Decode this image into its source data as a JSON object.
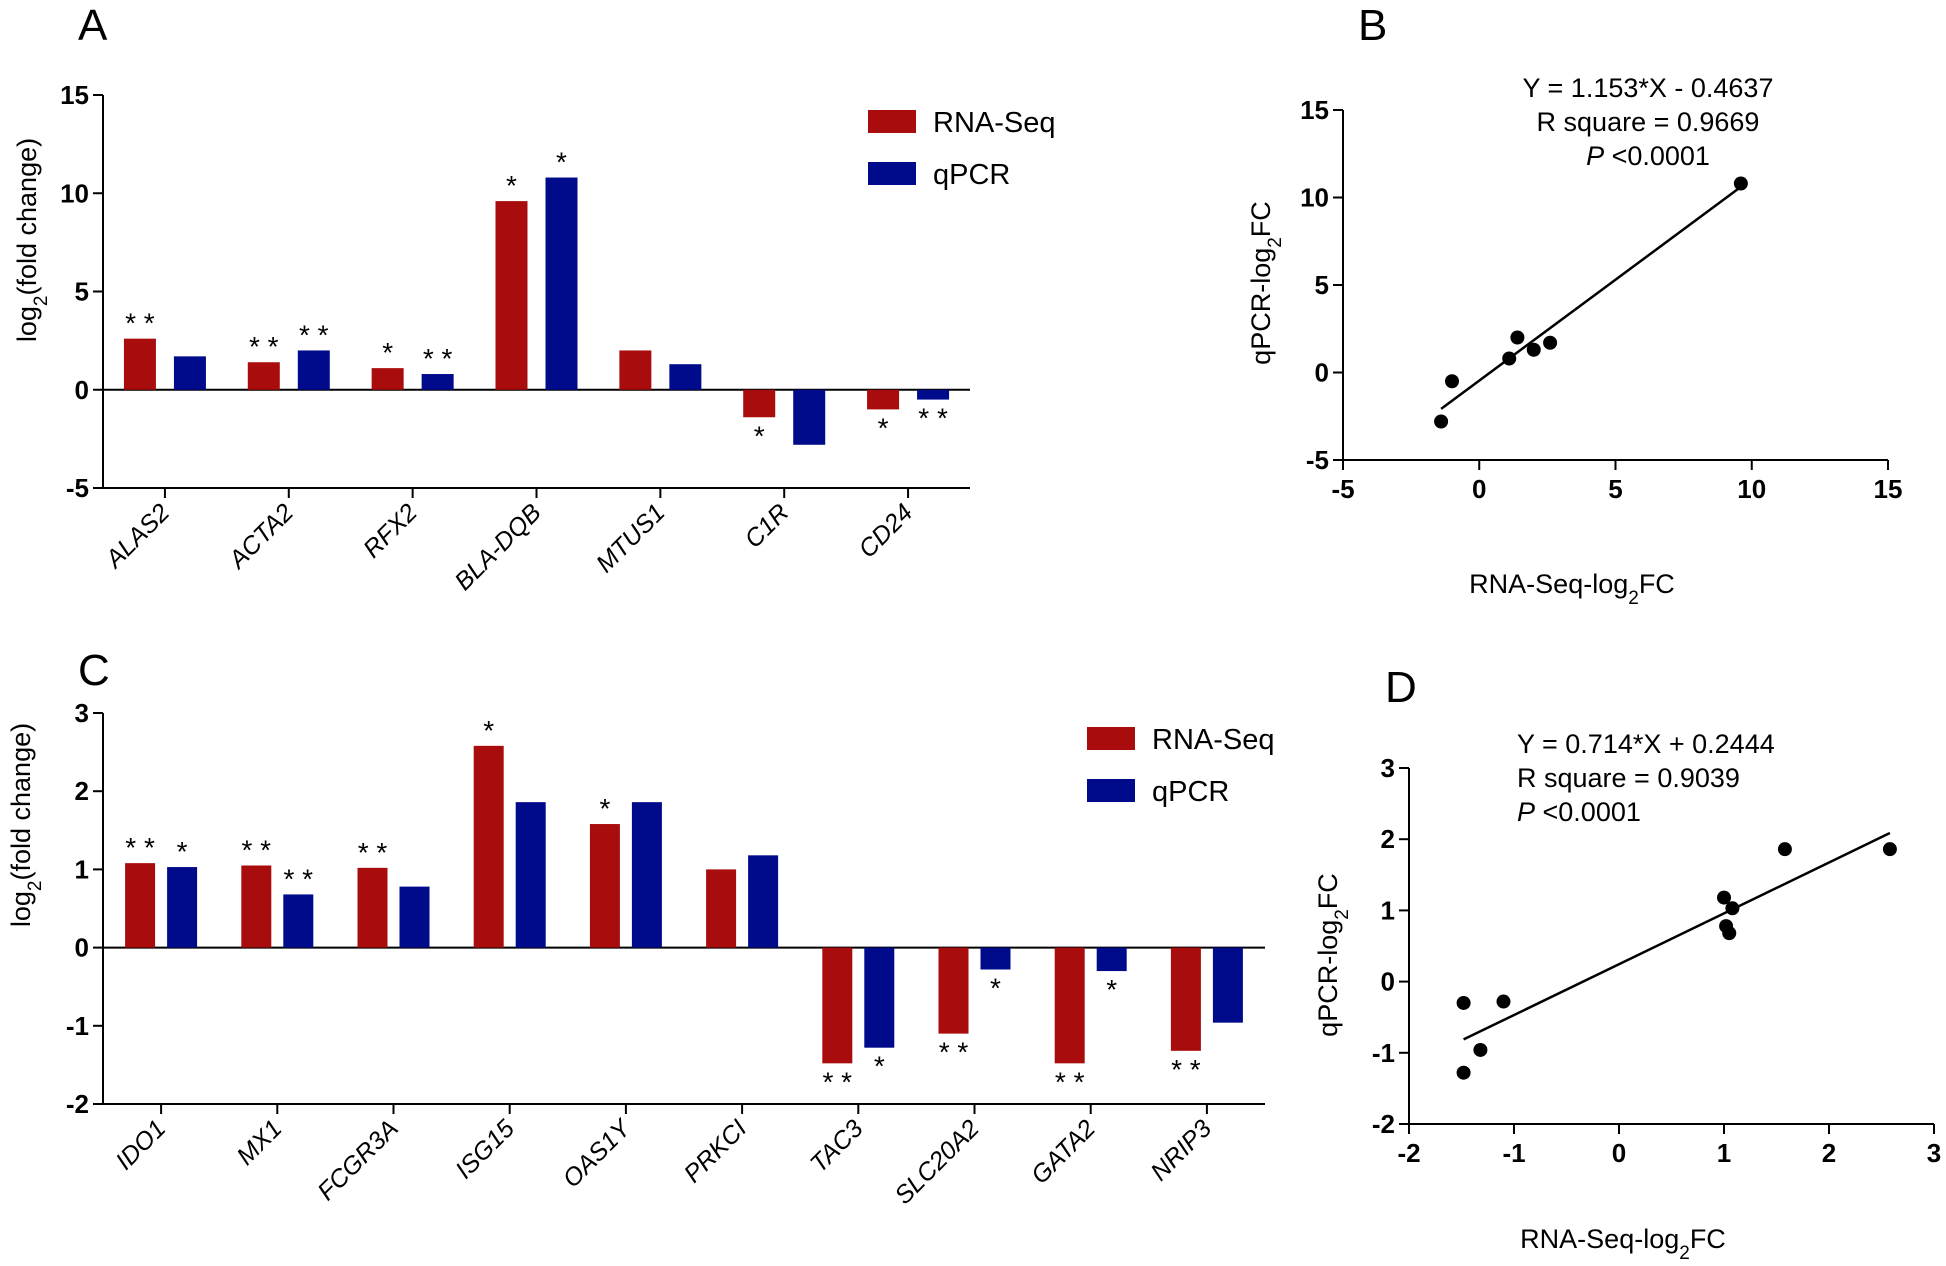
{
  "colors": {
    "rna": "#a80c0c",
    "qpcr": "#000b8c",
    "axis": "#000000"
  },
  "panels": {
    "A": {
      "letter": "A",
      "ylabel_prefix": "log",
      "ylabel_sub": "2",
      "ylabel_suffix": "(fold change)"
    },
    "B": {
      "letter": "B",
      "ylabel_prefix": "qPCR-log",
      "ylabel_sub": "2",
      "ylabel_suffix": "FC",
      "xlabel_prefix": "RNA-Seq-log",
      "xlabel_sub": "2",
      "xlabel_suffix": "FC"
    },
    "C": {
      "letter": "C",
      "ylabel_prefix": "log",
      "ylabel_sub": "2",
      "ylabel_suffix": "(fold change)"
    },
    "D": {
      "letter": "D",
      "ylabel_prefix": "qPCR-log",
      "ylabel_sub": "2",
      "ylabel_suffix": "FC",
      "xlabel_prefix": "RNA-Seq-log",
      "xlabel_sub": "2",
      "xlabel_suffix": "FC"
    }
  },
  "chart_data": [
    {
      "id": "A",
      "type": "bar",
      "categories": [
        "ALAS2",
        "ACTA2",
        "RFX2",
        "BLA-DQB",
        "MTUS1",
        "C1R",
        "CD24"
      ],
      "series": [
        {
          "name": "RNA-Seq",
          "values": [
            2.6,
            1.4,
            1.1,
            9.6,
            2.0,
            -1.4,
            -1.0
          ]
        },
        {
          "name": "qPCR",
          "values": [
            1.7,
            2.0,
            0.8,
            10.8,
            1.3,
            -2.8,
            -0.5
          ]
        }
      ],
      "significance": [
        [
          "**",
          ""
        ],
        [
          "**",
          "**"
        ],
        [
          "*",
          "**"
        ],
        [
          "*",
          "*"
        ],
        [
          "",
          ""
        ],
        [
          "*",
          ""
        ],
        [
          "*",
          "**"
        ]
      ],
      "ylabel": "log2(fold change)",
      "ylim": [
        -5,
        15
      ],
      "yticks": [
        -5,
        0,
        5,
        10,
        15
      ],
      "legend": [
        "RNA-Seq",
        "qPCR"
      ],
      "legend_position": "top-right"
    },
    {
      "id": "B",
      "type": "scatter",
      "points": [
        [
          -1.4,
          -2.8
        ],
        [
          -1.0,
          -0.5
        ],
        [
          1.1,
          0.8
        ],
        [
          1.4,
          2.0
        ],
        [
          2.0,
          1.3
        ],
        [
          2.6,
          1.7
        ],
        [
          9.6,
          10.8
        ]
      ],
      "fit": {
        "slope": 1.153,
        "intercept": -0.4637,
        "x_range": [
          -1.4,
          9.6
        ]
      },
      "annotation": {
        "equation": "Y = 1.153*X - 0.4637",
        "r_squared": "R square = 0.9669",
        "p_label": "P",
        "p_value": " <0.0001"
      },
      "xlabel": "RNA-Seq-log2FC",
      "ylabel": "qPCR-log2FC",
      "xlim": [
        -5,
        15
      ],
      "ylim": [
        -5,
        15
      ],
      "xticks": [
        -5,
        0,
        5,
        10,
        15
      ],
      "yticks": [
        -5,
        0,
        5,
        10,
        15
      ]
    },
    {
      "id": "C",
      "type": "bar",
      "categories": [
        "IDO1",
        "MX1",
        "FCGR3A",
        "ISG15",
        "OAS1Y",
        "PRKCI",
        "TAC3",
        "SLC20A2",
        "GATA2",
        "NRIP3"
      ],
      "series": [
        {
          "name": "RNA-Seq",
          "values": [
            1.08,
            1.05,
            1.02,
            2.58,
            1.58,
            1.0,
            -1.48,
            -1.1,
            -1.48,
            -1.32
          ]
        },
        {
          "name": "qPCR",
          "values": [
            1.03,
            0.68,
            0.78,
            1.86,
            1.86,
            1.18,
            -1.28,
            -0.28,
            -0.3,
            -0.96
          ]
        }
      ],
      "significance": [
        [
          "**",
          "*"
        ],
        [
          "**",
          "**"
        ],
        [
          "**",
          ""
        ],
        [
          "*",
          ""
        ],
        [
          "*",
          ""
        ],
        [
          "",
          ""
        ],
        [
          "**",
          "*"
        ],
        [
          "**",
          "*"
        ],
        [
          "**",
          "*"
        ],
        [
          "**",
          ""
        ]
      ],
      "ylabel": "log2(fold change)",
      "ylim": [
        -2,
        3
      ],
      "yticks": [
        -2,
        -1,
        0,
        1,
        2,
        3
      ],
      "legend": [
        "RNA-Seq",
        "qPCR"
      ],
      "legend_position": "top-right"
    },
    {
      "id": "D",
      "type": "scatter",
      "points": [
        [
          -1.48,
          -1.28
        ],
        [
          -1.48,
          -0.3
        ],
        [
          -1.32,
          -0.96
        ],
        [
          -1.1,
          -0.28
        ],
        [
          1.0,
          1.18
        ],
        [
          1.02,
          0.78
        ],
        [
          1.05,
          0.68
        ],
        [
          1.08,
          1.03
        ],
        [
          1.58,
          1.86
        ],
        [
          2.58,
          1.86
        ]
      ],
      "fit": {
        "slope": 0.714,
        "intercept": 0.2444,
        "x_range": [
          -1.48,
          2.58
        ]
      },
      "annotation": {
        "equation": "Y = 0.714*X + 0.2444",
        "r_squared": "R square = 0.9039",
        "p_label": "P",
        "p_value": " <0.0001"
      },
      "xlabel": "RNA-Seq-log2FC",
      "ylabel": "qPCR-log2FC",
      "xlim": [
        -2,
        3
      ],
      "ylim": [
        -2,
        3
      ],
      "xticks": [
        -2,
        -1,
        0,
        1,
        2,
        3
      ],
      "yticks": [
        -2,
        -1,
        0,
        1,
        2,
        3
      ]
    }
  ]
}
